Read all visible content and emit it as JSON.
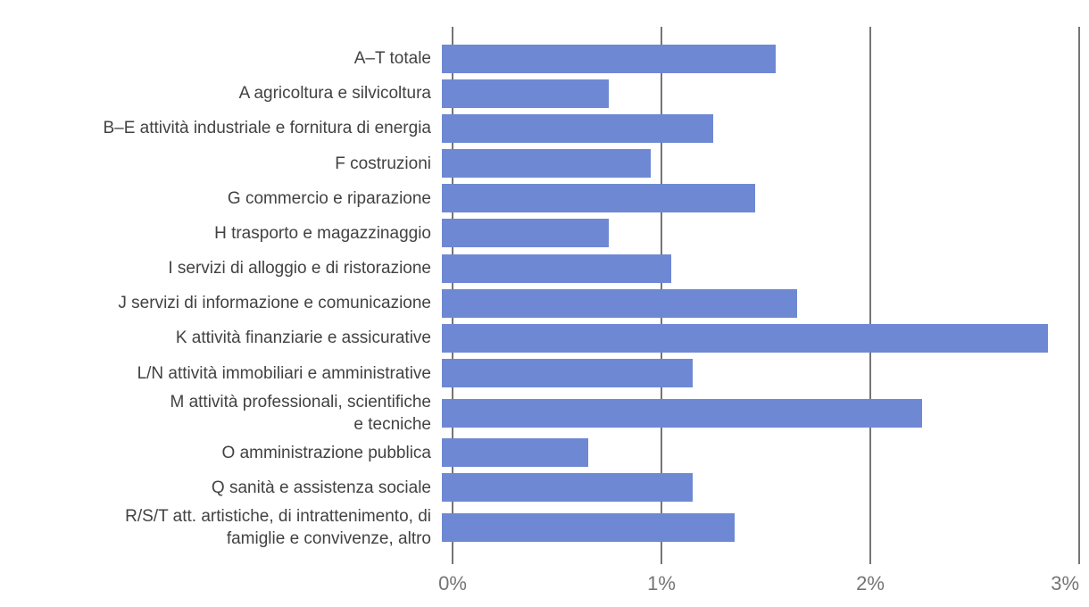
{
  "chart_data": {
    "type": "bar",
    "orientation": "horizontal",
    "title": "",
    "xlabel": "",
    "ylabel": "",
    "unit": "%",
    "xlim": [
      0,
      3
    ],
    "grid": "vertical",
    "legend": "none",
    "x_ticks": [
      {
        "label": "0%",
        "value": 0
      },
      {
        "label": "1%",
        "value": 1
      },
      {
        "label": "2%",
        "value": 2
      },
      {
        "label": "3%",
        "value": 3
      }
    ],
    "categories": [
      "A–T totale",
      "A agricoltura e silvicoltura",
      "B–E attività industriale e fornitura di energia",
      "F costruzioni",
      "G commercio e riparazione",
      "H trasporto e magazzinaggio",
      "I servizi di alloggio e di ristorazione",
      "J servizi di informazione e comunicazione",
      "K attività finanziarie e assicurative",
      "L/N attività immobiliari e amministrative",
      "M attività professionali, scientifiche e tecniche",
      "O amministrazione pubblica",
      "Q sanità e assistenza sociale",
      "R/S/T att. artistiche, di intrattenimento, di famiglie e convivenze, altro"
    ],
    "label_lines": [
      [
        "A–T totale"
      ],
      [
        "A agricoltura e silvicoltura"
      ],
      [
        "B–E attività industriale e fornitura di energia"
      ],
      [
        "F costruzioni"
      ],
      [
        "G commercio e riparazione"
      ],
      [
        "H trasporto e magazzinaggio"
      ],
      [
        "I servizi di alloggio e di ristorazione"
      ],
      [
        "J servizi di informazione e comunicazione"
      ],
      [
        "K attività finanziarie e assicurative"
      ],
      [
        "L/N attività immobiliari e amministrative"
      ],
      [
        "M attività professionali, scientifiche",
        "e tecniche"
      ],
      [
        "O amministrazione pubblica"
      ],
      [
        "Q sanità e assistenza sociale"
      ],
      [
        "R/S/T att. artistiche, di intrattenimento, di",
        "famiglie e convivenze, altro"
      ]
    ],
    "values": [
      1.6,
      0.8,
      1.3,
      1.0,
      1.5,
      0.8,
      1.1,
      1.7,
      2.9,
      1.2,
      2.3,
      0.7,
      1.2,
      1.4
    ]
  },
  "colors": {
    "bar": "#6e88d4",
    "gridline": "#757575",
    "tick_label": "#757575",
    "category_label": "#424242",
    "background": "#ffffff"
  }
}
